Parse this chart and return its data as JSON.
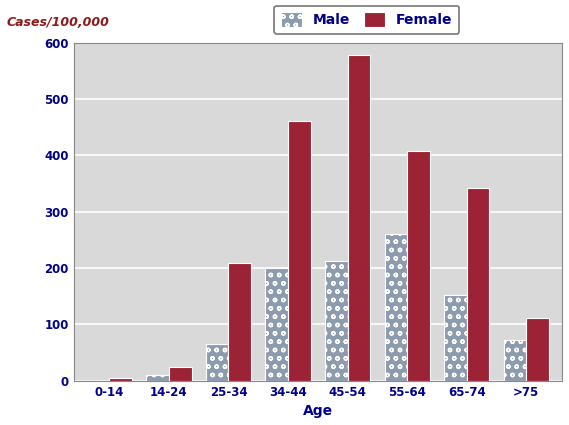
{
  "categories": [
    "0-14",
    "14-24",
    "25-34",
    "34-44",
    "45-54",
    "55-64",
    "65-74",
    ">75"
  ],
  "male_values": [
    0,
    10,
    65,
    200,
    213,
    260,
    152,
    73
  ],
  "female_values": [
    5,
    25,
    208,
    460,
    578,
    407,
    342,
    112
  ],
  "male_color": "#8c9bad",
  "female_color": "#9b2335",
  "bar_edge_color": "#ffffff",
  "cases_label": "Cases/100,000",
  "xlabel": "Age",
  "ylim": [
    0,
    600
  ],
  "yticks": [
    0,
    100,
    200,
    300,
    400,
    500,
    600
  ],
  "legend_labels": [
    "Male",
    "Female"
  ],
  "outer_bg_color": "#ffffff",
  "plot_bg_color": "#d9d9d9",
  "ylabel_color": "#8b0000",
  "cases_label_color": "#8b1a1a",
  "tick_label_color": "#00008b",
  "xlabel_color": "#00008b",
  "grid_color": "#ffffff",
  "legend_edge_color": "#555555"
}
